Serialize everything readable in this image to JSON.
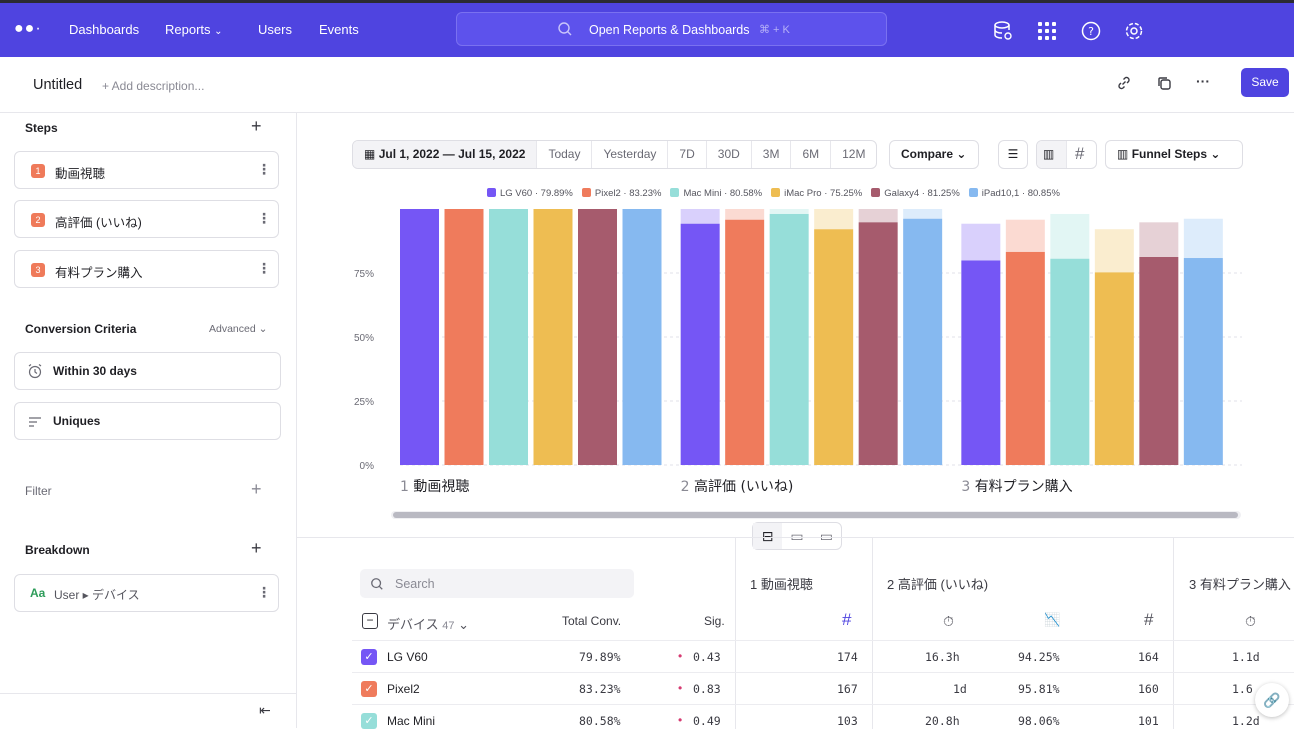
{
  "topnav": {
    "logo": "●●·",
    "items": [
      "Dashboards",
      "Reports",
      "Users",
      "Events"
    ],
    "search_placeholder": "Open Reports & Dashboards",
    "search_shortcut": "⌘ + K"
  },
  "report": {
    "title": "Untitled",
    "description_placeholder": "+ Add description...",
    "save_label": "Save"
  },
  "sidebar": {
    "steps_label": "Steps",
    "steps": [
      {
        "num": "1",
        "label": "動画視聴"
      },
      {
        "num": "2",
        "label": "高評価 (いいね)"
      },
      {
        "num": "3",
        "label": "有料プラン購入"
      }
    ],
    "conversion_label": "Conversion Criteria",
    "advanced_label": "Advanced",
    "window_label": "Within 30 days",
    "uniques_label": "Uniques",
    "filter_label": "Filter",
    "breakdown_label": "Breakdown",
    "breakdown_prefix": "Aa",
    "breakdown_value": "User ▸ デバイス"
  },
  "toolbar": {
    "date_range": "Jul 1, 2022 — Jul 15, 2022",
    "presets": [
      "Today",
      "Yesterday",
      "7D",
      "30D",
      "3M",
      "6M",
      "12M"
    ],
    "compare_label": "Compare",
    "hash": "#",
    "view_label": "Funnel Steps"
  },
  "chart_data": {
    "type": "bar",
    "categories": [
      "1 動画視聴",
      "2 高評価 (いいね)",
      "3 有料プラン購入"
    ],
    "y_ticks": [
      "0%",
      "25%",
      "50%",
      "75%"
    ],
    "ylim": [
      0,
      100
    ],
    "series": [
      {
        "name": "LG V60",
        "legend": "LG V60 · 79.89%",
        "color": "#7556f5",
        "values": [
          100,
          94.25,
          79.89
        ],
        "ghost": [
          100,
          100,
          94.25
        ]
      },
      {
        "name": "Pixel2",
        "legend": "Pixel2 · 83.23%",
        "color": "#ef7b5c",
        "values": [
          100,
          95.81,
          83.23
        ],
        "ghost": [
          100,
          100,
          95.81
        ]
      },
      {
        "name": "Mac Mini",
        "legend": "Mac Mini · 80.58%",
        "color": "#96ded9",
        "values": [
          100,
          98.06,
          80.58
        ],
        "ghost": [
          100,
          100,
          98.06
        ]
      },
      {
        "name": "iMac Pro",
        "legend": "iMac Pro · 75.25%",
        "color": "#eebd52",
        "values": [
          100,
          92.1,
          75.25
        ],
        "ghost": [
          100,
          100,
          92.1
        ]
      },
      {
        "name": "Galaxy4",
        "legend": "Galaxy4 · 81.25%",
        "color": "#a65b6d",
        "values": [
          100,
          94.8,
          81.25
        ],
        "ghost": [
          100,
          100,
          94.8
        ]
      },
      {
        "name": "iPad10,1",
        "legend": "iPad10,1 · 80.85%",
        "color": "#86b9f0",
        "values": [
          100,
          96.2,
          80.85
        ],
        "ghost": [
          100,
          100,
          96.2
        ]
      }
    ]
  },
  "table": {
    "search_placeholder": "Search",
    "group_header": "デバイス",
    "group_count": "47",
    "col_total": "Total Conv.",
    "col_sig": "Sig.",
    "step1": "1 動画視聴",
    "step2": "2 高評価 (いいね)",
    "step3": "3 有料プラン購入",
    "hash": "#",
    "rows": [
      {
        "name": "LG V60",
        "color": "#7556f5",
        "total": "79.89%",
        "sig": "0.43",
        "s1": "174",
        "t2": "16.3h",
        "p2": "94.25%",
        "c2": "164",
        "t3": "1.1d"
      },
      {
        "name": "Pixel2",
        "color": "#ef7b5c",
        "total": "83.23%",
        "sig": "0.83",
        "s1": "167",
        "t2": "1d",
        "p2": "95.81%",
        "c2": "160",
        "t3": "1.6"
      },
      {
        "name": "Mac Mini",
        "color": "#96ded9",
        "total": "80.58%",
        "sig": "0.49",
        "s1": "103",
        "t2": "20.8h",
        "p2": "98.06%",
        "c2": "101",
        "t3": "1.2d"
      }
    ]
  }
}
